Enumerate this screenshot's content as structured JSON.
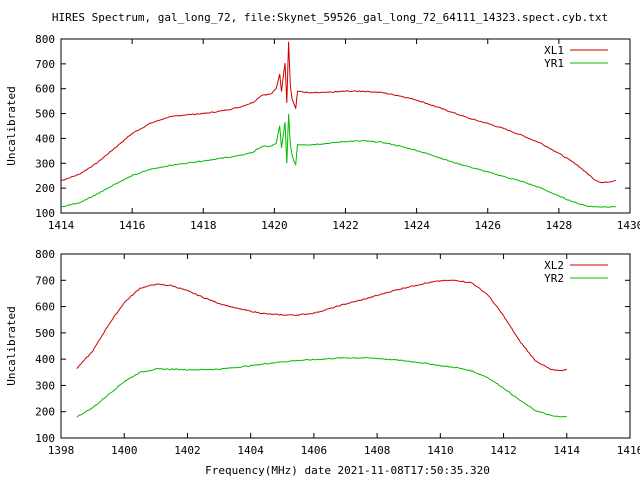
{
  "page_title": "HIRES Spectrum, gal_long_72, file:Skynet_59526_gal_long_72_64111_14323.spect.cyb.txt",
  "colors": {
    "red": "#cc0000",
    "green": "#00bb00",
    "axis": "#000000"
  },
  "chart_data": [
    {
      "type": "line",
      "ylabel": "Uncalibrated",
      "xlabel": "",
      "xlim": [
        1414,
        1430
      ],
      "ylim": [
        100,
        800
      ],
      "xticks": [
        1414,
        1416,
        1418,
        1420,
        1422,
        1424,
        1426,
        1428,
        1430
      ],
      "yticks": [
        100,
        200,
        300,
        400,
        500,
        600,
        700,
        800
      ],
      "legend_position": "top-right",
      "grid": false,
      "series": [
        {
          "name": "XL1",
          "color": "#cc0000",
          "points": [
            [
              1414.0,
              230
            ],
            [
              1414.5,
              255
            ],
            [
              1415.0,
              300
            ],
            [
              1415.5,
              360
            ],
            [
              1416.0,
              420
            ],
            [
              1416.5,
              460
            ],
            [
              1417.0,
              485
            ],
            [
              1417.5,
              495
            ],
            [
              1418.0,
              500
            ],
            [
              1418.5,
              510
            ],
            [
              1419.0,
              525
            ],
            [
              1419.4,
              545
            ],
            [
              1419.65,
              575
            ],
            [
              1419.9,
              578
            ],
            [
              1420.05,
              600
            ],
            [
              1420.15,
              660
            ],
            [
              1420.2,
              590
            ],
            [
              1420.3,
              705
            ],
            [
              1420.35,
              545
            ],
            [
              1420.4,
              790
            ],
            [
              1420.45,
              610
            ],
            [
              1420.5,
              560
            ],
            [
              1420.55,
              540
            ],
            [
              1420.6,
              520
            ],
            [
              1420.65,
              590
            ],
            [
              1420.9,
              585
            ],
            [
              1421.0,
              583
            ],
            [
              1421.5,
              585
            ],
            [
              1422.0,
              590
            ],
            [
              1422.5,
              590
            ],
            [
              1423.0,
              585
            ],
            [
              1423.5,
              572
            ],
            [
              1424.0,
              555
            ],
            [
              1424.5,
              530
            ],
            [
              1425.0,
              505
            ],
            [
              1425.5,
              480
            ],
            [
              1426.0,
              460
            ],
            [
              1426.5,
              437
            ],
            [
              1427.0,
              410
            ],
            [
              1427.5,
              380
            ],
            [
              1428.0,
              340
            ],
            [
              1428.5,
              295
            ],
            [
              1429.0,
              235
            ],
            [
              1429.2,
              222
            ],
            [
              1429.4,
              225
            ],
            [
              1429.6,
              232
            ]
          ]
        },
        {
          "name": "YR1",
          "color": "#00bb00",
          "points": [
            [
              1414.0,
              125
            ],
            [
              1414.5,
              140
            ],
            [
              1415.0,
              175
            ],
            [
              1415.5,
              215
            ],
            [
              1416.0,
              250
            ],
            [
              1416.5,
              275
            ],
            [
              1417.0,
              290
            ],
            [
              1417.5,
              300
            ],
            [
              1418.0,
              310
            ],
            [
              1418.5,
              320
            ],
            [
              1419.0,
              330
            ],
            [
              1419.4,
              345
            ],
            [
              1419.65,
              368
            ],
            [
              1419.9,
              368
            ],
            [
              1420.05,
              380
            ],
            [
              1420.15,
              450
            ],
            [
              1420.2,
              360
            ],
            [
              1420.3,
              465
            ],
            [
              1420.35,
              300
            ],
            [
              1420.4,
              500
            ],
            [
              1420.45,
              370
            ],
            [
              1420.5,
              330
            ],
            [
              1420.55,
              310
            ],
            [
              1420.6,
              295
            ],
            [
              1420.65,
              375
            ],
            [
              1420.9,
              375
            ],
            [
              1421.0,
              375
            ],
            [
              1421.5,
              380
            ],
            [
              1422.0,
              388
            ],
            [
              1422.5,
              390
            ],
            [
              1423.0,
              385
            ],
            [
              1423.5,
              370
            ],
            [
              1424.0,
              352
            ],
            [
              1424.5,
              330
            ],
            [
              1425.0,
              305
            ],
            [
              1425.5,
              285
            ],
            [
              1426.0,
              265
            ],
            [
              1426.5,
              245
            ],
            [
              1427.0,
              225
            ],
            [
              1427.5,
              200
            ],
            [
              1428.0,
              168
            ],
            [
              1428.5,
              140
            ],
            [
              1428.8,
              128
            ],
            [
              1429.0,
              125
            ],
            [
              1429.6,
              125
            ]
          ]
        }
      ]
    },
    {
      "type": "line",
      "ylabel": "Uncalibrated",
      "xlabel": "Frequency(MHz) date 2021-11-08T17:50:35.320",
      "xlim": [
        1398,
        1416
      ],
      "ylim": [
        100,
        800
      ],
      "xticks": [
        1398,
        1400,
        1402,
        1404,
        1406,
        1408,
        1410,
        1412,
        1414,
        1416
      ],
      "yticks": [
        100,
        200,
        300,
        400,
        500,
        600,
        700,
        800
      ],
      "legend_position": "top-right",
      "grid": false,
      "series": [
        {
          "name": "XL2",
          "color": "#cc0000",
          "points": [
            [
              1398.5,
              365
            ],
            [
              1399.0,
              430
            ],
            [
              1399.5,
              530
            ],
            [
              1400.0,
              615
            ],
            [
              1400.5,
              670
            ],
            [
              1401.0,
              685
            ],
            [
              1401.5,
              680
            ],
            [
              1402.0,
              660
            ],
            [
              1402.5,
              635
            ],
            [
              1403.0,
              612
            ],
            [
              1403.5,
              595
            ],
            [
              1404.0,
              582
            ],
            [
              1404.5,
              572
            ],
            [
              1405.0,
              568
            ],
            [
              1405.5,
              568
            ],
            [
              1406.0,
              575
            ],
            [
              1406.5,
              592
            ],
            [
              1407.0,
              610
            ],
            [
              1407.5,
              625
            ],
            [
              1408.0,
              642
            ],
            [
              1408.5,
              660
            ],
            [
              1409.0,
              675
            ],
            [
              1409.5,
              688
            ],
            [
              1410.0,
              698
            ],
            [
              1410.5,
              700
            ],
            [
              1411.0,
              690
            ],
            [
              1411.5,
              645
            ],
            [
              1412.0,
              565
            ],
            [
              1412.5,
              470
            ],
            [
              1413.0,
              395
            ],
            [
              1413.5,
              360
            ],
            [
              1413.8,
              355
            ],
            [
              1414.0,
              362
            ]
          ]
        },
        {
          "name": "YR2",
          "color": "#00bb00",
          "points": [
            [
              1398.5,
              180
            ],
            [
              1399.0,
              215
            ],
            [
              1399.5,
              265
            ],
            [
              1400.0,
              315
            ],
            [
              1400.5,
              350
            ],
            [
              1401.0,
              362
            ],
            [
              1401.5,
              362
            ],
            [
              1402.0,
              360
            ],
            [
              1402.5,
              360
            ],
            [
              1403.0,
              362
            ],
            [
              1403.5,
              368
            ],
            [
              1404.0,
              375
            ],
            [
              1404.5,
              383
            ],
            [
              1405.0,
              390
            ],
            [
              1405.5,
              395
            ],
            [
              1406.0,
              398
            ],
            [
              1406.5,
              402
            ],
            [
              1407.0,
              405
            ],
            [
              1407.5,
              405
            ],
            [
              1408.0,
              403
            ],
            [
              1408.5,
              398
            ],
            [
              1409.0,
              392
            ],
            [
              1409.5,
              385
            ],
            [
              1410.0,
              375
            ],
            [
              1410.5,
              368
            ],
            [
              1411.0,
              355
            ],
            [
              1411.5,
              330
            ],
            [
              1412.0,
              290
            ],
            [
              1412.5,
              245
            ],
            [
              1413.0,
              205
            ],
            [
              1413.5,
              185
            ],
            [
              1413.8,
              180
            ],
            [
              1414.0,
              182
            ]
          ]
        }
      ]
    }
  ]
}
